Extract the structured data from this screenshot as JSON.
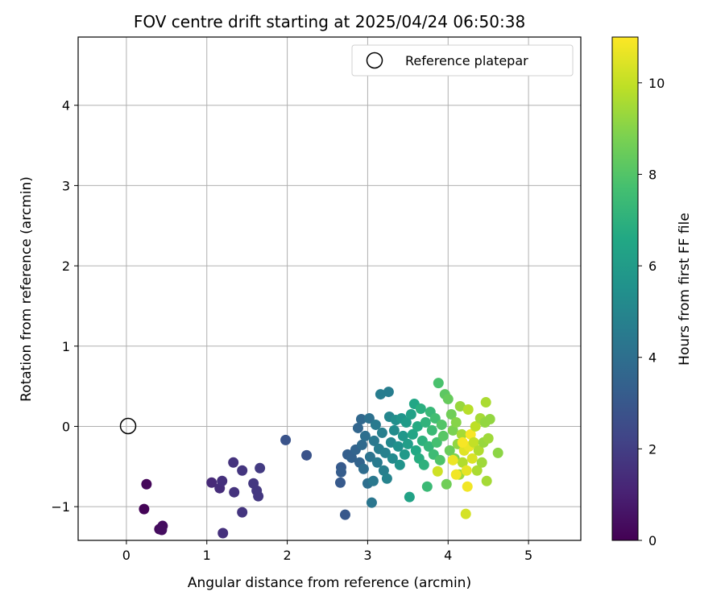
{
  "chart_data": {
    "type": "scatter",
    "title": "FOV centre drift starting at 2025/04/24 06:50:38",
    "xlabel": "Angular distance from reference (arcmin)",
    "ylabel": "Rotation from reference (arcmin)",
    "xlim": [
      -0.6,
      5.65
    ],
    "ylim": [
      -1.42,
      4.85
    ],
    "xticks": [
      "0",
      "1",
      "2",
      "3",
      "4",
      "5"
    ],
    "yticks": [
      "−1",
      "0",
      "1",
      "2",
      "3",
      "4"
    ],
    "xtick_values": [
      0,
      1,
      2,
      3,
      4,
      5
    ],
    "ytick_values": [
      -1,
      0,
      1,
      2,
      3,
      4
    ],
    "grid": true,
    "legend": {
      "placement": "top-right",
      "entries": [
        "Reference platepar"
      ]
    },
    "reference_point": {
      "x": 0,
      "y": 0,
      "label": "Reference platepar"
    },
    "colorbar": {
      "label": "Hours from first FF file",
      "range": [
        0,
        11
      ],
      "ticks": [
        "0",
        "2",
        "4",
        "6",
        "8",
        "10"
      ],
      "tick_values": [
        0,
        2,
        4,
        6,
        8,
        10
      ],
      "colormap": "viridis"
    },
    "points": [
      [
        0.22,
        -1.03,
        0.1
      ],
      [
        0.25,
        -0.72,
        0.2
      ],
      [
        0.41,
        -1.28,
        0.3
      ],
      [
        0.45,
        -1.24,
        0.35
      ],
      [
        0.44,
        -1.29,
        0.4
      ],
      [
        1.06,
        -0.7,
        1.3
      ],
      [
        1.16,
        -0.77,
        1.4
      ],
      [
        1.19,
        -0.68,
        1.5
      ],
      [
        1.2,
        -1.33,
        1.5
      ],
      [
        1.33,
        -0.45,
        1.6
      ],
      [
        1.34,
        -0.82,
        1.6
      ],
      [
        1.44,
        -0.55,
        1.7
      ],
      [
        1.44,
        -1.07,
        1.7
      ],
      [
        1.58,
        -0.71,
        1.8
      ],
      [
        1.62,
        -0.8,
        1.8
      ],
      [
        1.64,
        -0.87,
        1.8
      ],
      [
        1.66,
        -0.52,
        1.9
      ],
      [
        1.98,
        -0.17,
        2.8
      ],
      [
        2.24,
        -0.36,
        2.8
      ],
      [
        2.66,
        -0.7,
        3.1
      ],
      [
        2.67,
        -0.51,
        3.1
      ],
      [
        2.67,
        -0.57,
        3.2
      ],
      [
        2.72,
        -1.1,
        3.0
      ],
      [
        2.75,
        -0.35,
        3.3
      ],
      [
        2.8,
        -0.39,
        3.4
      ],
      [
        2.85,
        -0.29,
        3.5
      ],
      [
        2.88,
        -0.02,
        3.6
      ],
      [
        2.9,
        -0.45,
        3.5
      ],
      [
        2.92,
        0.09,
        3.7
      ],
      [
        2.93,
        -0.23,
        3.8
      ],
      [
        2.95,
        -0.53,
        3.9
      ],
      [
        2.97,
        -0.12,
        4.0
      ],
      [
        3.0,
        -0.71,
        4.0
      ],
      [
        3.02,
        0.1,
        4.1
      ],
      [
        3.03,
        -0.38,
        4.2
      ],
      [
        3.05,
        -0.95,
        4.3
      ],
      [
        3.07,
        -0.68,
        4.4
      ],
      [
        3.08,
        -0.18,
        4.4
      ],
      [
        3.1,
        0.02,
        4.5
      ],
      [
        3.12,
        -0.45,
        4.5
      ],
      [
        3.14,
        -0.28,
        4.6
      ],
      [
        3.16,
        0.4,
        4.6
      ],
      [
        3.18,
        -0.08,
        4.7
      ],
      [
        3.2,
        -0.55,
        4.7
      ],
      [
        3.22,
        -0.33,
        4.8
      ],
      [
        3.24,
        -0.65,
        4.9
      ],
      [
        3.26,
        0.43,
        4.6
      ],
      [
        3.27,
        0.12,
        5.0
      ],
      [
        3.29,
        -0.2,
        5.1
      ],
      [
        3.31,
        -0.4,
        5.2
      ],
      [
        3.33,
        -0.05,
        5.3
      ],
      [
        3.35,
        0.08,
        5.4
      ],
      [
        3.38,
        -0.25,
        5.5
      ],
      [
        3.4,
        -0.48,
        5.6
      ],
      [
        3.42,
        0.1,
        5.7
      ],
      [
        3.44,
        -0.12,
        5.8
      ],
      [
        3.46,
        -0.35,
        5.9
      ],
      [
        3.48,
        0.05,
        6.0
      ],
      [
        3.5,
        -0.22,
        6.1
      ],
      [
        3.52,
        -0.88,
        6.3
      ],
      [
        3.54,
        0.15,
        6.2
      ],
      [
        3.56,
        -0.1,
        6.4
      ],
      [
        3.58,
        0.28,
        6.5
      ],
      [
        3.6,
        -0.3,
        6.6
      ],
      [
        3.62,
        0.0,
        6.7
      ],
      [
        3.64,
        -0.4,
        6.8
      ],
      [
        3.66,
        0.22,
        6.9
      ],
      [
        3.68,
        -0.18,
        7.0
      ],
      [
        3.7,
        -0.48,
        7.0
      ],
      [
        3.72,
        0.05,
        7.1
      ],
      [
        3.74,
        -0.75,
        7.4
      ],
      [
        3.76,
        -0.25,
        7.2
      ],
      [
        3.78,
        0.18,
        7.3
      ],
      [
        3.8,
        -0.05,
        7.4
      ],
      [
        3.82,
        -0.35,
        7.5
      ],
      [
        3.84,
        0.1,
        7.6
      ],
      [
        3.86,
        -0.2,
        7.7
      ],
      [
        3.88,
        0.54,
        7.8
      ],
      [
        3.9,
        -0.42,
        7.9
      ],
      [
        3.92,
        0.02,
        8.0
      ],
      [
        3.94,
        -0.12,
        8.1
      ],
      [
        3.96,
        0.4,
        8.2
      ],
      [
        3.98,
        -0.72,
        8.6
      ],
      [
        4.0,
        0.34,
        8.4
      ],
      [
        3.87,
        -0.56,
        10.2
      ],
      [
        4.02,
        -0.3,
        8.5
      ],
      [
        4.04,
        0.15,
        8.6
      ],
      [
        4.06,
        -0.05,
        8.8
      ],
      [
        4.08,
        -0.4,
        8.9
      ],
      [
        4.1,
        0.05,
        9.0
      ],
      [
        4.12,
        -0.22,
        9.2
      ],
      [
        4.14,
        -0.6,
        9.4
      ],
      [
        4.15,
        0.25,
        9.3
      ],
      [
        4.17,
        -0.1,
        9.5
      ],
      [
        4.18,
        -0.45,
        9.7
      ],
      [
        4.2,
        -0.3,
        10.5
      ],
      [
        4.22,
        -1.09,
        10.3
      ],
      [
        4.23,
        -0.55,
        10.6
      ],
      [
        4.24,
        -0.75,
        10.8
      ],
      [
        4.25,
        0.21,
        9.8
      ],
      [
        4.26,
        -0.25,
        10.7
      ],
      [
        4.28,
        -0.1,
        10.9
      ],
      [
        4.3,
        -0.4,
        10.4
      ],
      [
        4.32,
        -0.2,
        10.0
      ],
      [
        4.34,
        0.0,
        9.9
      ],
      [
        4.36,
        -0.55,
        9.6
      ],
      [
        4.38,
        -0.3,
        9.7
      ],
      [
        4.4,
        0.1,
        9.5
      ],
      [
        4.42,
        -0.45,
        9.4
      ],
      [
        4.44,
        -0.2,
        9.3
      ],
      [
        4.46,
        0.05,
        9.2
      ],
      [
        4.47,
        0.3,
        9.6
      ],
      [
        4.48,
        -0.68,
        9.5
      ],
      [
        4.5,
        -0.15,
        9.4
      ],
      [
        4.52,
        0.09,
        9.2
      ],
      [
        4.62,
        -0.33,
        9.1
      ],
      [
        4.1,
        -0.6,
        10.8
      ],
      [
        4.18,
        -0.2,
        10.9
      ],
      [
        4.06,
        -0.42,
        10.7
      ]
    ]
  }
}
